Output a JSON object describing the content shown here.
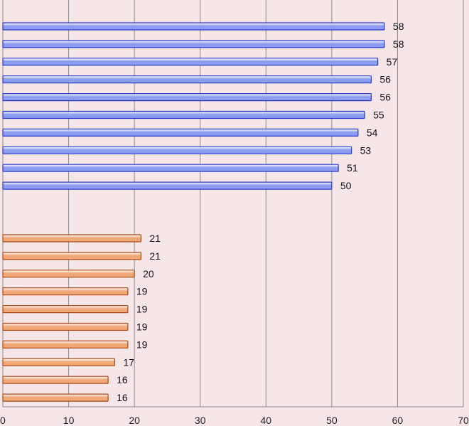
{
  "chart_data": {
    "type": "bar",
    "orientation": "horizontal",
    "xlim": [
      0,
      70
    ],
    "x_ticks": [
      0,
      10,
      20,
      30,
      40,
      50,
      60,
      70
    ],
    "grid": "vertical",
    "legend": "none",
    "colors": {
      "background": "#f7e6e7",
      "grid": "#8a8a8a",
      "blue_fill": "#8c9cf0",
      "blue_edge": "#2a3bcc",
      "orange_fill": "#f0a878",
      "orange_edge": "#a84a1a"
    },
    "series": [
      {
        "color": "blue",
        "values": [
          58,
          58,
          57,
          56,
          56,
          55,
          54,
          53,
          51,
          50
        ]
      },
      {
        "color": "orange",
        "values": [
          21,
          21,
          20,
          19,
          19,
          19,
          19,
          17,
          16,
          16
        ]
      }
    ]
  }
}
